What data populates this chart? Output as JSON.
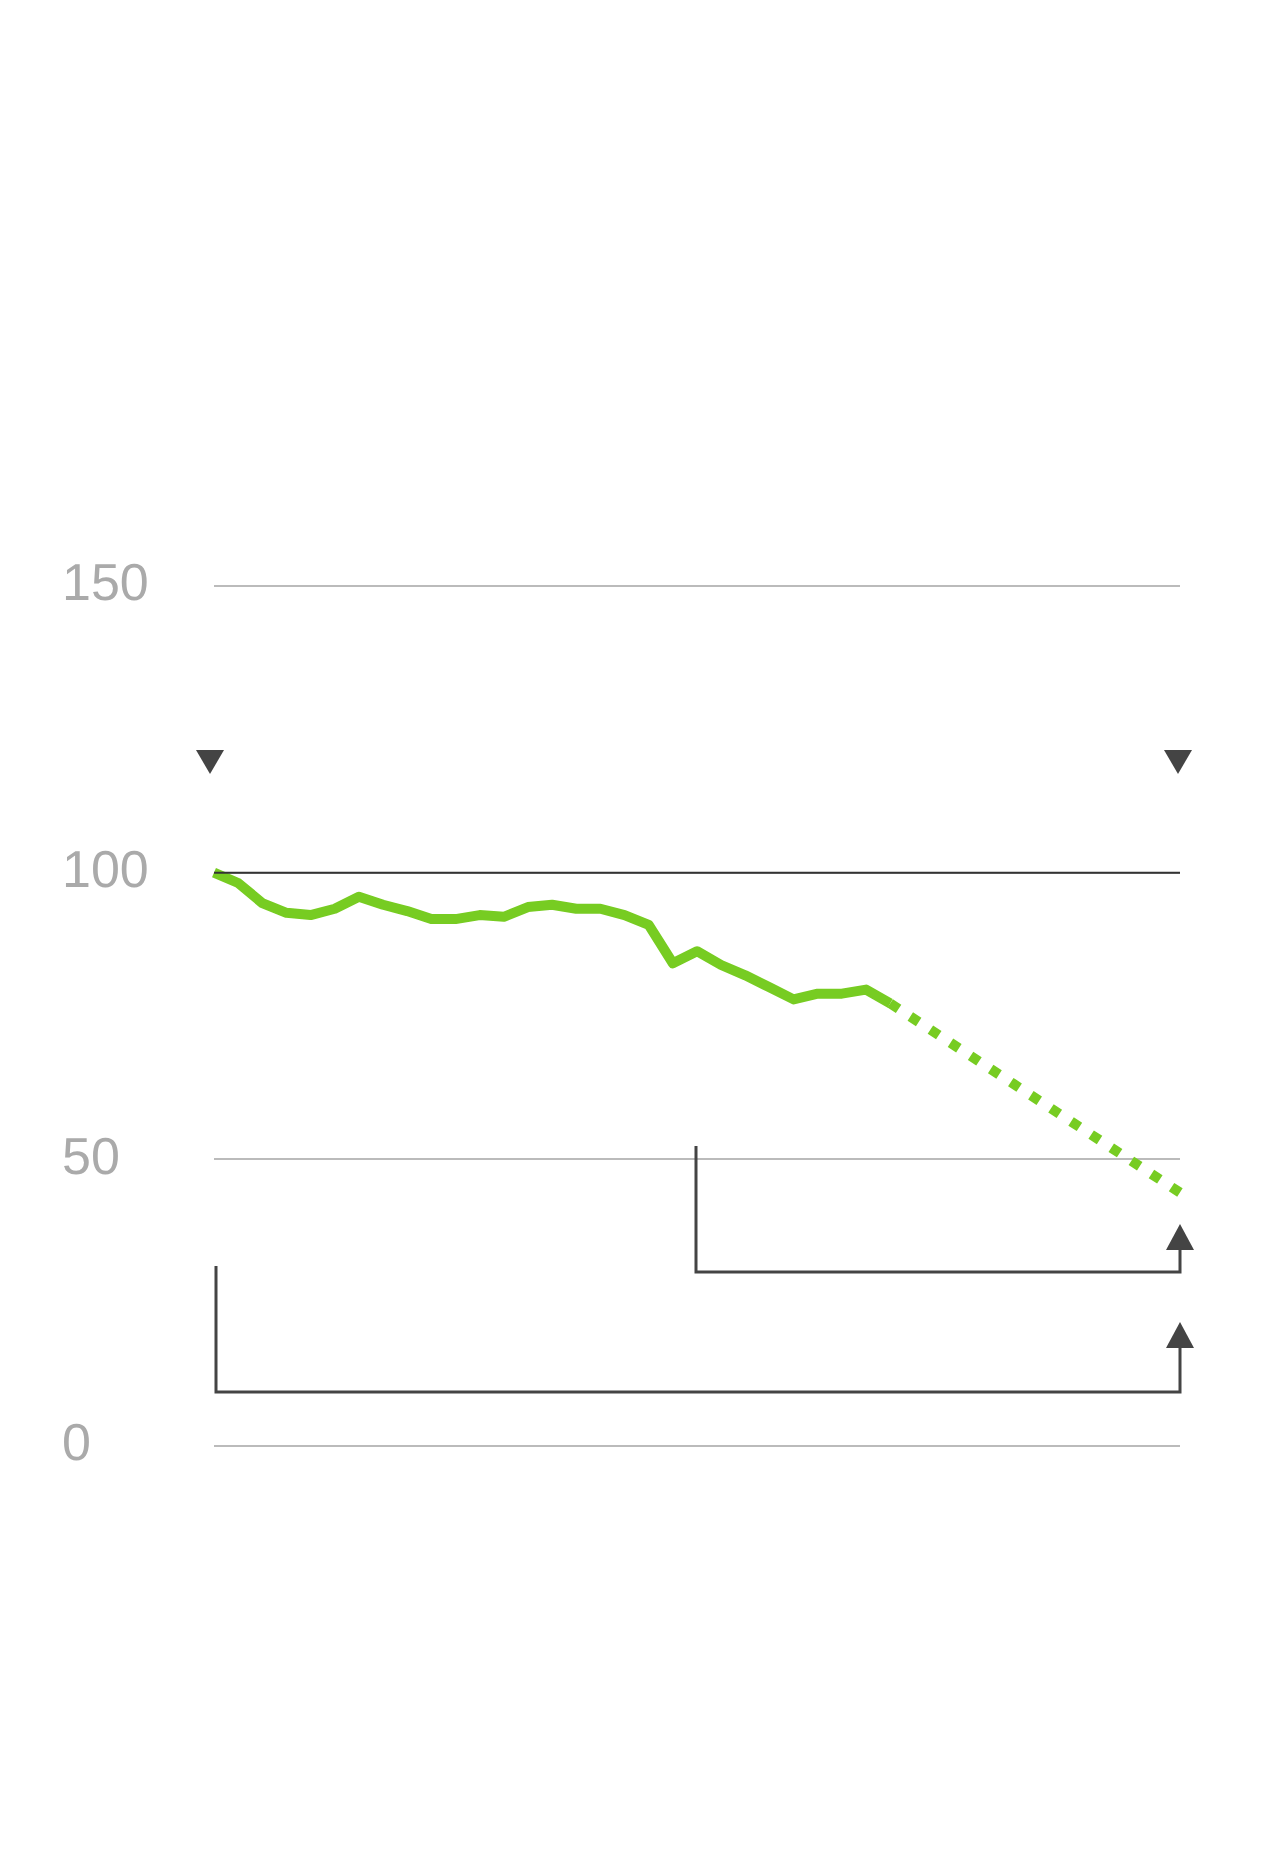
{
  "chart_data": {
    "type": "line",
    "categories": [
      null,
      null,
      null,
      null,
      null,
      null,
      null,
      null,
      null,
      null,
      null,
      null,
      null,
      null,
      null,
      null,
      null,
      null,
      null,
      null,
      null,
      null,
      null,
      null,
      null,
      null,
      null,
      null,
      null,
      null,
      null,
      null,
      null,
      null,
      null,
      null,
      null,
      null,
      null,
      null,
      null
    ],
    "series": [
      {
        "color": "#77cc22",
        "line_style": "solid",
        "values": [
          100,
          98.2,
          94.7,
          93,
          92.6,
          93.7,
          95.8,
          94.4,
          93.3,
          91.9,
          91.9,
          92.6,
          92.3,
          94,
          94.4,
          93.7,
          93.7,
          92.6,
          90.9,
          84.2,
          86.3,
          83.9,
          82.1,
          80,
          77.9,
          78.9,
          78.9,
          79.6,
          77.2,
          null,
          null,
          null,
          null,
          null,
          null,
          null,
          null,
          null,
          null,
          null,
          null
        ]
      },
      {
        "color": "#77cc22",
        "line_style": "dotted",
        "values": [
          null,
          null,
          null,
          null,
          null,
          null,
          null,
          null,
          null,
          null,
          null,
          null,
          null,
          null,
          null,
          null,
          null,
          null,
          null,
          null,
          null,
          null,
          null,
          null,
          null,
          null,
          null,
          null,
          77.2,
          null,
          null,
          null,
          null,
          null,
          null,
          null,
          null,
          null,
          null,
          null,
          44.2
        ]
      }
    ],
    "ylim": [
      0,
      150
    ],
    "yticks": [
      0,
      50,
      100,
      150
    ],
    "grid": "y",
    "tick_labels": "y",
    "marker": "none",
    "ref_lines": [
      {
        "axis": "y",
        "value": 100,
        "color": "#333333"
      }
    ]
  }
}
